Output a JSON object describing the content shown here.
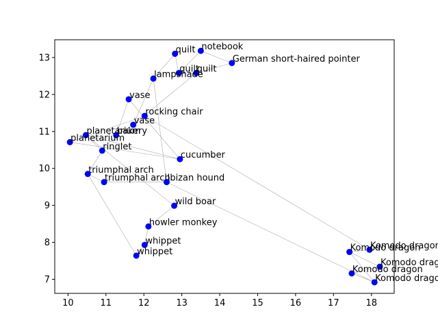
{
  "chart_data": {
    "type": "scatter",
    "title": "",
    "xlabel": "",
    "ylabel": "",
    "xlim": [
      9.65,
      18.6
    ],
    "ylim": [
      6.62,
      13.48
    ],
    "xticks": [
      10,
      11,
      12,
      13,
      14,
      15,
      16,
      17,
      18
    ],
    "yticks": [
      7,
      8,
      9,
      10,
      11,
      12,
      13
    ],
    "grid": false,
    "marker_color": "#0000ff",
    "edge_color": "#aaaaaa",
    "points": [
      {
        "label": "notebook",
        "x": 13.5,
        "y": 13.18
      },
      {
        "label": "quilt",
        "x": 12.82,
        "y": 13.1
      },
      {
        "label": "German short-haired pointer",
        "x": 14.32,
        "y": 12.85
      },
      {
        "label": "quilt",
        "x": 12.92,
        "y": 12.58
      },
      {
        "label": "quilt",
        "x": 13.38,
        "y": 12.58
      },
      {
        "label": "lampshade",
        "x": 12.25,
        "y": 12.43
      },
      {
        "label": "vase",
        "x": 11.6,
        "y": 11.87
      },
      {
        "label": "rocking chair",
        "x": 12.02,
        "y": 11.42
      },
      {
        "label": "vase",
        "x": 11.72,
        "y": 11.18
      },
      {
        "label": "planetarium",
        "x": 10.47,
        "y": 10.9
      },
      {
        "label": "bakery",
        "x": 11.27,
        "y": 10.9
      },
      {
        "label": "planetarium",
        "x": 10.05,
        "y": 10.71
      },
      {
        "label": "ringlet",
        "x": 10.9,
        "y": 10.48
      },
      {
        "label": "cucumber",
        "x": 12.95,
        "y": 10.25
      },
      {
        "label": "triumphal arch",
        "x": 10.52,
        "y": 9.85
      },
      {
        "label": "triumphal arch",
        "x": 10.95,
        "y": 9.63
      },
      {
        "label": "Ibizan hound",
        "x": 12.6,
        "y": 9.63
      },
      {
        "label": "wild boar",
        "x": 12.8,
        "y": 8.99
      },
      {
        "label": "howler monkey",
        "x": 12.12,
        "y": 8.43
      },
      {
        "label": "whippet",
        "x": 12.02,
        "y": 7.93
      },
      {
        "label": "whippet",
        "x": 11.8,
        "y": 7.64
      },
      {
        "label": "Komodo dragon",
        "x": 17.95,
        "y": 7.8
      },
      {
        "label": "Komodo dragon",
        "x": 17.42,
        "y": 7.74
      },
      {
        "label": "Komodo dragon",
        "x": 18.22,
        "y": 7.34
      },
      {
        "label": "Komodo dragon",
        "x": 17.48,
        "y": 7.16
      },
      {
        "label": "Komodo dragon",
        "x": 18.08,
        "y": 6.92
      }
    ],
    "edges": [
      [
        0,
        2
      ],
      [
        0,
        3
      ],
      [
        1,
        3
      ],
      [
        1,
        5
      ],
      [
        3,
        4
      ],
      [
        4,
        8
      ],
      [
        4,
        2
      ],
      [
        5,
        16
      ],
      [
        5,
        8
      ],
      [
        6,
        10
      ],
      [
        6,
        13
      ],
      [
        7,
        21
      ],
      [
        7,
        11
      ],
      [
        8,
        10
      ],
      [
        9,
        13
      ],
      [
        9,
        12
      ],
      [
        9,
        17
      ],
      [
        10,
        12
      ],
      [
        11,
        13
      ],
      [
        12,
        14
      ],
      [
        14,
        15
      ],
      [
        15,
        16
      ],
      [
        16,
        25
      ],
      [
        18,
        19
      ],
      [
        19,
        20
      ],
      [
        18,
        17
      ],
      [
        20,
        14
      ],
      [
        21,
        22
      ],
      [
        22,
        23
      ],
      [
        23,
        24
      ],
      [
        24,
        25
      ],
      [
        22,
        25
      ]
    ]
  }
}
